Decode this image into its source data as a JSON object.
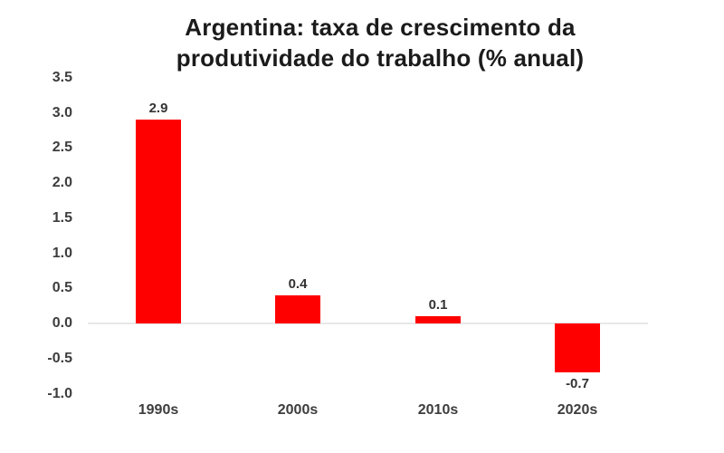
{
  "page": {
    "background": "#ffffff"
  },
  "chart_data": {
    "type": "bar",
    "title": "Argentina: taxa de crescimento da produtividade do trabalho (% anual)",
    "title_lines": [
      "Argentina: taxa de crescimento da",
      "produtividade do trabalho (% anual)"
    ],
    "categories": [
      "1990s",
      "2000s",
      "2010s",
      "2020s"
    ],
    "values": [
      2.9,
      0.4,
      0.1,
      -0.7
    ],
    "data_labels": [
      "2.9",
      "0.4",
      "0.1",
      "-0.7"
    ],
    "y_ticks": [
      3.5,
      3.0,
      2.5,
      2.0,
      1.5,
      1.0,
      0.5,
      0.0,
      -0.5,
      -1.0
    ],
    "y_tick_labels": [
      "3.5",
      "3.0",
      "2.5",
      "2.0",
      "1.5",
      "1.0",
      "0.5",
      "0.0",
      "-0.5",
      "-1.0"
    ],
    "ylim": [
      -1.0,
      3.5
    ],
    "xlabel": "",
    "ylabel": "",
    "legend": "none",
    "grid": "zero-baseline-only",
    "colors": {
      "bar": "#FF0000",
      "title": "#1B1B1B",
      "axis_text": "#3D3D3D",
      "data_label": "#333333",
      "baseline": "#E8E8E8"
    }
  }
}
